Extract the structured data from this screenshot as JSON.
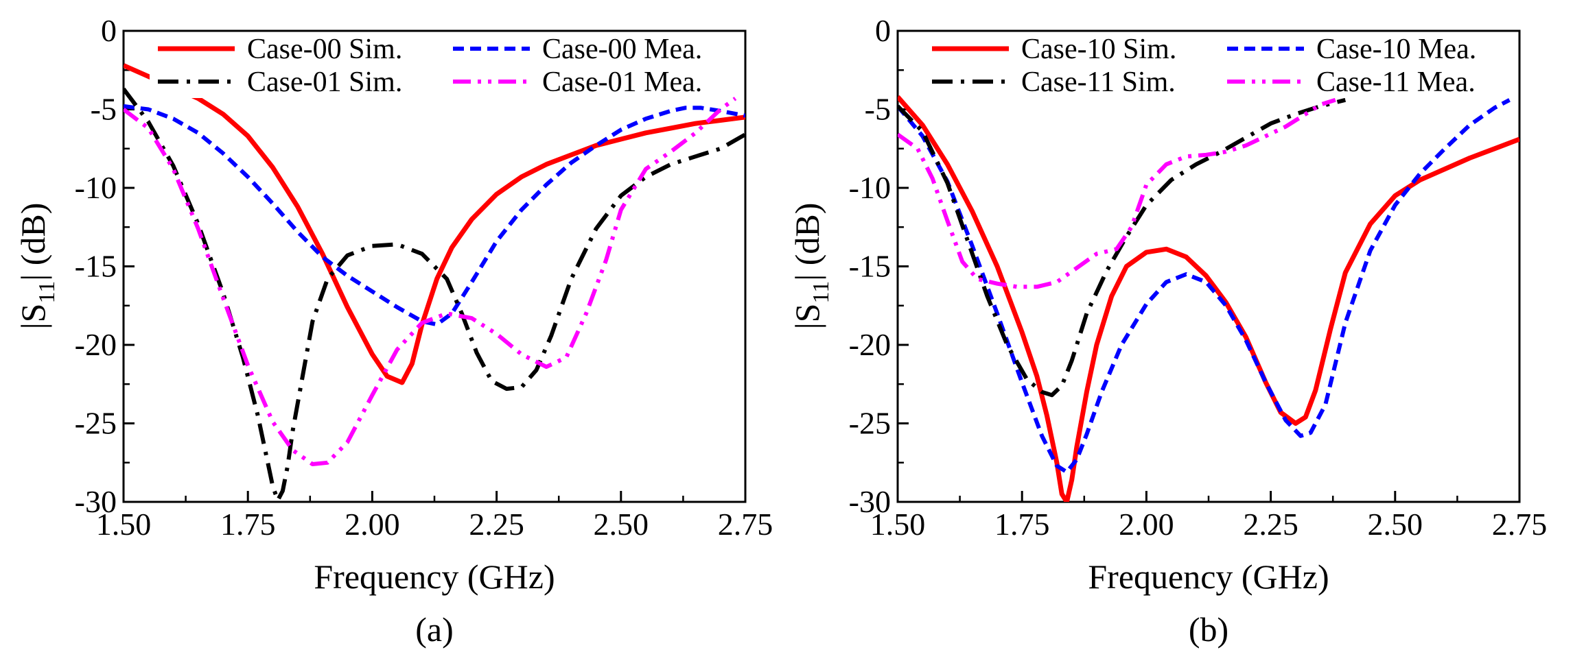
{
  "colors": {
    "sim_a": "#ff0000",
    "mea_a": "#0000ff",
    "sim_b": "#000000",
    "mea_b": "#ff00ff"
  },
  "chart_data": [
    {
      "type": "line",
      "panel_label": "(a)",
      "xlabel": "Frequency (GHz)",
      "ylabel_main": "|S",
      "ylabel_sub": "11",
      "ylabel_tail": "| (dB)",
      "xlim": [
        1.5,
        2.75
      ],
      "ylim": [
        -30,
        0
      ],
      "x_ticks": [
        1.5,
        1.75,
        2.0,
        2.25,
        2.5,
        2.75
      ],
      "x_tick_labels": [
        "1.50",
        "1.75",
        "2.00",
        "2.25",
        "2.50",
        "2.75"
      ],
      "y_ticks": [
        0,
        -5,
        -10,
        -15,
        -20,
        -25,
        -30
      ],
      "y_tick_labels": [
        "0",
        "-5",
        "-10",
        "-15",
        "-20",
        "-25",
        "-30"
      ],
      "grid": false,
      "legend_position": "top",
      "series": [
        {
          "name": "Case-00 Sim.",
          "style": "solid",
          "color": "#ff0000",
          "x": [
            1.5,
            1.55,
            1.6,
            1.65,
            1.7,
            1.75,
            1.8,
            1.85,
            1.9,
            1.95,
            2.0,
            2.03,
            2.06,
            2.08,
            2.1,
            2.13,
            2.16,
            2.2,
            2.25,
            2.3,
            2.35,
            2.4,
            2.45,
            2.5,
            2.55,
            2.6,
            2.65,
            2.7,
            2.75
          ],
          "y": [
            -2.2,
            -2.9,
            -3.6,
            -4.3,
            -5.3,
            -6.7,
            -8.7,
            -11.2,
            -14.2,
            -17.6,
            -20.6,
            -22.0,
            -22.4,
            -21.2,
            -18.7,
            -15.8,
            -13.8,
            -12.0,
            -10.4,
            -9.3,
            -8.5,
            -7.9,
            -7.3,
            -6.9,
            -6.5,
            -6.2,
            -5.9,
            -5.7,
            -5.5
          ]
        },
        {
          "name": "Case-00 Mea.",
          "style": "dashed",
          "color": "#0000ff",
          "x": [
            1.5,
            1.55,
            1.6,
            1.65,
            1.7,
            1.75,
            1.8,
            1.85,
            1.9,
            1.95,
            2.0,
            2.05,
            2.1,
            2.13,
            2.16,
            2.2,
            2.25,
            2.3,
            2.35,
            2.4,
            2.45,
            2.5,
            2.55,
            2.6,
            2.63,
            2.66,
            2.7,
            2.75
          ],
          "y": [
            -4.8,
            -5.0,
            -5.6,
            -6.5,
            -7.8,
            -9.3,
            -11.0,
            -12.8,
            -14.4,
            -15.6,
            -16.6,
            -17.6,
            -18.5,
            -18.7,
            -18.0,
            -16.0,
            -13.4,
            -11.4,
            -9.8,
            -8.4,
            -7.3,
            -6.3,
            -5.6,
            -5.1,
            -4.9,
            -4.9,
            -5.1,
            -5.4
          ]
        },
        {
          "name": "Case-01 Sim.",
          "style": "dashdot",
          "color": "#000000",
          "x": [
            1.5,
            1.55,
            1.6,
            1.65,
            1.7,
            1.74,
            1.77,
            1.79,
            1.8,
            1.81,
            1.82,
            1.83,
            1.84,
            1.86,
            1.88,
            1.91,
            1.95,
            2.0,
            2.05,
            2.1,
            2.15,
            2.18,
            2.21,
            2.24,
            2.27,
            2.3,
            2.33,
            2.36,
            2.4,
            2.45,
            2.5,
            2.55,
            2.6,
            2.65,
            2.7,
            2.75
          ],
          "y": [
            -3.7,
            -5.8,
            -8.6,
            -12.3,
            -16.7,
            -20.8,
            -24.5,
            -27.5,
            -29.0,
            -29.9,
            -29.3,
            -27.7,
            -25.5,
            -22.0,
            -18.5,
            -15.8,
            -14.3,
            -13.7,
            -13.6,
            -14.2,
            -15.8,
            -18.0,
            -20.5,
            -22.3,
            -22.8,
            -22.7,
            -21.6,
            -19.4,
            -15.8,
            -12.6,
            -10.5,
            -9.3,
            -8.5,
            -8.0,
            -7.5,
            -6.6
          ]
        },
        {
          "name": "Case-01 Mea.",
          "style": "dashdotdot",
          "color": "#ff00ff",
          "x": [
            1.5,
            1.55,
            1.6,
            1.65,
            1.7,
            1.75,
            1.8,
            1.84,
            1.88,
            1.91,
            1.95,
            2.0,
            2.05,
            2.1,
            2.15,
            2.2,
            2.25,
            2.3,
            2.35,
            2.39,
            2.43,
            2.47,
            2.5,
            2.55,
            2.6,
            2.65,
            2.7,
            2.73
          ],
          "y": [
            -5.0,
            -6.2,
            -8.8,
            -12.6,
            -17.0,
            -21.3,
            -24.9,
            -26.7,
            -27.6,
            -27.5,
            -26.2,
            -23.2,
            -20.3,
            -18.6,
            -18.0,
            -18.3,
            -19.3,
            -20.6,
            -21.4,
            -20.8,
            -18.0,
            -14.6,
            -11.4,
            -8.8,
            -7.7,
            -6.5,
            -5.0,
            -4.3
          ]
        }
      ]
    },
    {
      "type": "line",
      "panel_label": "(b)",
      "xlabel": "Frequency (GHz)",
      "ylabel_main": "|S",
      "ylabel_sub": "11",
      "ylabel_tail": "| (dB)",
      "xlim": [
        1.5,
        2.75
      ],
      "ylim": [
        -30,
        0
      ],
      "x_ticks": [
        1.5,
        1.75,
        2.0,
        2.25,
        2.5,
        2.75
      ],
      "x_tick_labels": [
        "1.50",
        "1.75",
        "2.00",
        "2.25",
        "2.50",
        "2.75"
      ],
      "y_ticks": [
        0,
        -5,
        -10,
        -15,
        -20,
        -25,
        -30
      ],
      "y_tick_labels": [
        "0",
        "-5",
        "-10",
        "-15",
        "-20",
        "-25",
        "-30"
      ],
      "grid": false,
      "legend_position": "top",
      "series": [
        {
          "name": "Case-10 Sim.",
          "style": "solid",
          "color": "#ff0000",
          "x": [
            1.5,
            1.55,
            1.6,
            1.65,
            1.7,
            1.75,
            1.78,
            1.8,
            1.82,
            1.83,
            1.84,
            1.85,
            1.86,
            1.88,
            1.9,
            1.93,
            1.96,
            2.0,
            2.04,
            2.08,
            2.12,
            2.16,
            2.2,
            2.24,
            2.27,
            2.3,
            2.32,
            2.34,
            2.37,
            2.4,
            2.45,
            2.5,
            2.55,
            2.6,
            2.65,
            2.7,
            2.75
          ],
          "y": [
            -4.2,
            -6.0,
            -8.5,
            -11.5,
            -15.0,
            -19.2,
            -22.0,
            -24.5,
            -27.5,
            -29.5,
            -30.0,
            -28.6,
            -26.5,
            -23.0,
            -20.0,
            -16.9,
            -15.0,
            -14.1,
            -13.9,
            -14.4,
            -15.6,
            -17.3,
            -19.5,
            -22.4,
            -24.3,
            -25.0,
            -24.6,
            -22.9,
            -19.0,
            -15.4,
            -12.3,
            -10.5,
            -9.5,
            -8.8,
            -8.1,
            -7.5,
            -6.9
          ]
        },
        {
          "name": "Case-10 Mea.",
          "style": "dashed",
          "color": "#0000ff",
          "x": [
            1.5,
            1.55,
            1.6,
            1.65,
            1.7,
            1.75,
            1.79,
            1.82,
            1.84,
            1.86,
            1.88,
            1.91,
            1.95,
            2.0,
            2.04,
            2.08,
            2.12,
            2.16,
            2.2,
            2.24,
            2.28,
            2.31,
            2.33,
            2.36,
            2.4,
            2.45,
            2.5,
            2.55,
            2.6,
            2.65,
            2.7,
            2.73
          ],
          "y": [
            -4.8,
            -6.7,
            -9.6,
            -13.7,
            -18.0,
            -22.4,
            -25.8,
            -27.7,
            -28.1,
            -27.3,
            -25.7,
            -23.0,
            -20.0,
            -17.4,
            -16.0,
            -15.5,
            -16.0,
            -17.5,
            -19.7,
            -22.4,
            -24.8,
            -25.8,
            -25.6,
            -23.8,
            -18.6,
            -14.0,
            -11.1,
            -9.1,
            -7.5,
            -6.0,
            -4.9,
            -4.4
          ]
        },
        {
          "name": "Case-11 Sim.",
          "style": "dashdot",
          "color": "#000000",
          "x": [
            1.5,
            1.55,
            1.6,
            1.64,
            1.68,
            1.72,
            1.76,
            1.79,
            1.81,
            1.83,
            1.85,
            1.88,
            1.92,
            1.96,
            2.0,
            2.05,
            2.1,
            2.15,
            2.2,
            2.25,
            2.3,
            2.35,
            2.4
          ],
          "y": [
            -4.8,
            -6.4,
            -9.7,
            -13.3,
            -16.9,
            -20.0,
            -22.2,
            -23.0,
            -23.2,
            -22.6,
            -21.0,
            -18.0,
            -15.3,
            -13.1,
            -11.1,
            -9.5,
            -8.5,
            -7.7,
            -6.8,
            -5.9,
            -5.3,
            -4.8,
            -4.4
          ]
        },
        {
          "name": "Case-11 Mea.",
          "style": "dashdotdot",
          "color": "#ff00ff",
          "x": [
            1.5,
            1.54,
            1.57,
            1.6,
            1.63,
            1.66,
            1.7,
            1.74,
            1.78,
            1.82,
            1.86,
            1.9,
            1.94,
            1.97,
            2.0,
            2.04,
            2.08,
            2.12,
            2.16,
            2.2,
            2.24,
            2.28,
            2.32,
            2.35,
            2.38
          ],
          "y": [
            -6.6,
            -7.5,
            -9.4,
            -12.1,
            -14.7,
            -15.8,
            -16.1,
            -16.3,
            -16.3,
            -16.0,
            -15.1,
            -14.2,
            -13.9,
            -12.5,
            -9.8,
            -8.5,
            -8.0,
            -7.9,
            -7.7,
            -7.3,
            -6.7,
            -6.1,
            -5.3,
            -4.7,
            -4.4
          ]
        }
      ]
    }
  ]
}
